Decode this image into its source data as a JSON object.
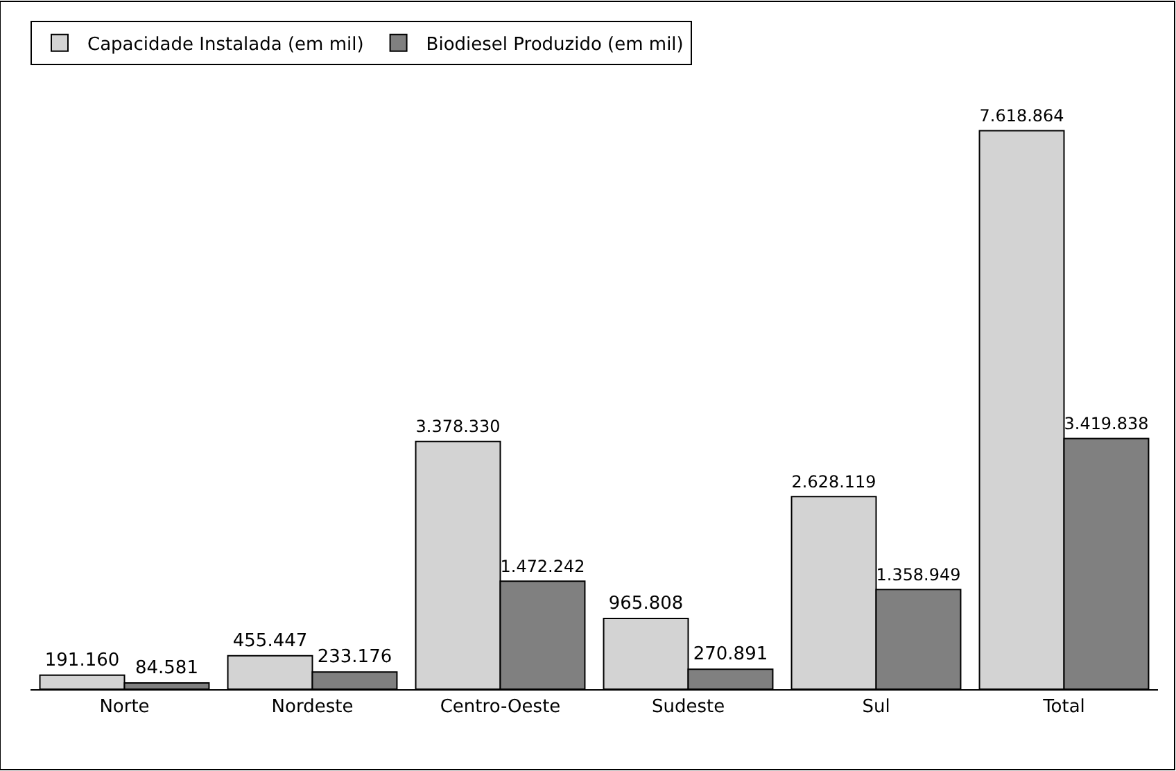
{
  "chart_data": {
    "type": "bar",
    "categories": [
      "Norte",
      "Nordeste",
      "Centro-Oeste",
      "Sudeste",
      "Sul",
      "Total"
    ],
    "series": [
      {
        "name": "Capacidade Instalada (em mil)",
        "color": "#d3d3d3",
        "values": [
          191160,
          455447,
          3378330,
          965808,
          2628119,
          7618864
        ],
        "value_labels": [
          "191.160",
          "455.447",
          "3.378.330",
          "965.808",
          "2.628.119",
          "7.618.864"
        ]
      },
      {
        "name": "Biodiesel Produzido (em mil)",
        "color": "#808080",
        "values": [
          84581,
          233176,
          1472242,
          270891,
          1358949,
          3419838
        ],
        "value_labels": [
          "84.581",
          "233.176",
          "1.472.242",
          "270.891",
          "1.358.949",
          "3.419.838"
        ]
      }
    ],
    "legend": "top left"
  }
}
